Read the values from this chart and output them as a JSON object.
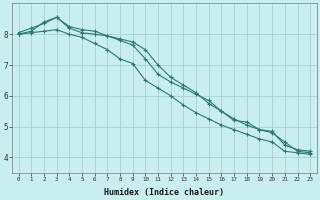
{
  "xlabel": "Humidex (Indice chaleur)",
  "ylabel": "",
  "xlim": [
    -0.5,
    23.5
  ],
  "ylim": [
    3.5,
    9.0
  ],
  "bg_color": "#c8eef0",
  "grid_color": "#a0cccc",
  "line_color": "#2d7a6b",
  "line1": [
    8.05,
    8.2,
    8.35,
    8.55,
    8.25,
    8.15,
    8.1,
    7.95,
    7.8,
    7.65,
    7.2,
    6.7,
    6.45,
    6.25,
    6.05,
    5.85,
    5.5,
    5.2,
    5.15,
    4.9,
    4.85,
    4.4,
    4.25,
    4.2
  ],
  "line2": [
    8.0,
    8.1,
    8.4,
    8.55,
    8.2,
    8.05,
    8.0,
    7.95,
    7.85,
    7.75,
    7.5,
    7.0,
    6.6,
    6.35,
    6.1,
    5.75,
    5.5,
    5.25,
    5.05,
    4.9,
    4.8,
    4.5,
    4.2,
    4.15
  ],
  "line3": [
    8.0,
    8.05,
    8.1,
    8.15,
    8.0,
    7.9,
    7.7,
    7.5,
    7.2,
    7.05,
    6.5,
    6.25,
    6.0,
    5.7,
    5.45,
    5.25,
    5.05,
    4.9,
    4.75,
    4.6,
    4.5,
    4.2,
    4.15,
    4.1
  ],
  "yticks": [
    4,
    5,
    6,
    7,
    8
  ],
  "xticks": [
    0,
    1,
    2,
    3,
    4,
    5,
    6,
    7,
    8,
    9,
    10,
    11,
    12,
    13,
    14,
    15,
    16,
    17,
    18,
    19,
    20,
    21,
    22,
    23
  ]
}
